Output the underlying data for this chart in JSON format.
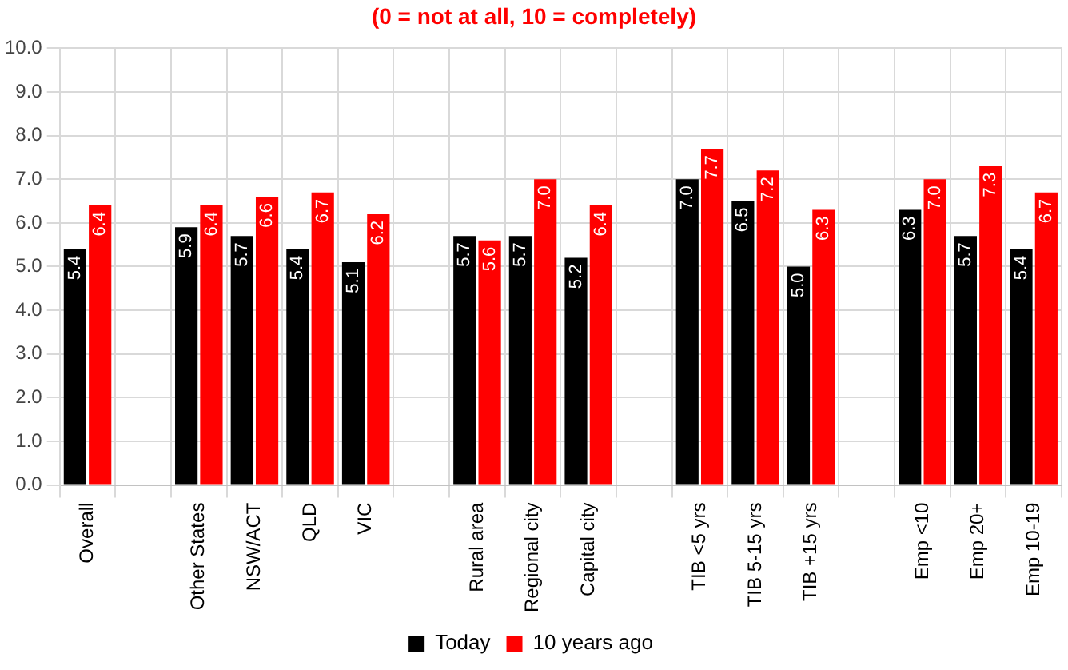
{
  "chart_data": {
    "type": "bar",
    "title": "(0 = not at all, 10 = completely)",
    "categories": [
      "Overall",
      null,
      "Other States",
      "NSW/ACT",
      "QLD",
      "VIC",
      null,
      "Rural area",
      "Regional city",
      "Capital city",
      null,
      "TIB <5 yrs",
      "TIB 5-15 yrs",
      "TIB +15 yrs",
      null,
      "Emp <10",
      "Emp 20+",
      "Emp 10-19"
    ],
    "series": [
      {
        "name": "Today",
        "color": "#000000",
        "values": [
          5.4,
          null,
          5.9,
          5.7,
          5.4,
          5.1,
          null,
          5.7,
          5.7,
          5.2,
          null,
          7.0,
          6.5,
          5.0,
          null,
          6.3,
          5.7,
          5.4
        ],
        "value_labels": [
          "5.4",
          null,
          "5.9",
          "5.7",
          "5.4",
          "5.1",
          null,
          "5.7",
          "5.7",
          "5.2",
          null,
          "7.0",
          "6.5",
          "5.0",
          null,
          "6.3",
          "5.7",
          "5.4"
        ]
      },
      {
        "name": "10 years ago",
        "color": "#ff0000",
        "values": [
          6.4,
          null,
          6.4,
          6.6,
          6.7,
          6.2,
          null,
          5.6,
          7.0,
          6.4,
          null,
          7.7,
          7.2,
          6.3,
          null,
          7.0,
          7.3,
          6.7
        ],
        "value_labels": [
          "6.4",
          null,
          "6.4",
          "6.6",
          "6.7",
          "6.2",
          null,
          "5.6",
          "7.0",
          "6.4",
          null,
          "7.7",
          "7.2",
          "6.3",
          null,
          "7.0",
          "7.3",
          "6.7"
        ]
      }
    ],
    "ylim": [
      0,
      10
    ],
    "yticks": [
      {
        "value": 0,
        "label": "0.0"
      },
      {
        "value": 1,
        "label": "1.0"
      },
      {
        "value": 2,
        "label": "2.0"
      },
      {
        "value": 3,
        "label": "3.0"
      },
      {
        "value": 4,
        "label": "4.0"
      },
      {
        "value": 5,
        "label": "5.0"
      },
      {
        "value": 6,
        "label": "6.0"
      },
      {
        "value": 7,
        "label": "7.0"
      },
      {
        "value": 8,
        "label": "8.0"
      },
      {
        "value": 9,
        "label": "9.0"
      },
      {
        "value": 10,
        "label": "10.0"
      }
    ],
    "grid": true,
    "legend": "bottom"
  }
}
